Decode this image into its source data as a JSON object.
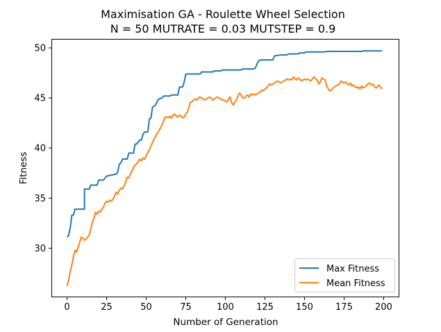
{
  "chart_data": {
    "type": "line",
    "title_line1": "Maximisation GA - Roulette Wheel Selection",
    "title_line2": "N = 50 MUTRATE = 0.03 MUTSTEP = 0.9",
    "xlabel": "Number of Generation",
    "ylabel": "Fitness",
    "xlim": [
      -9.9,
      209.9
    ],
    "ylim": [
      25.1,
      50.9
    ],
    "xticks": [
      0,
      25,
      50,
      75,
      100,
      125,
      150,
      175,
      200
    ],
    "yticks": [
      30,
      35,
      40,
      45,
      50
    ],
    "grid": false,
    "legend_position": "lower right",
    "series": [
      {
        "name": "Max Fitness",
        "color": "#1f77b4",
        "points": [
          [
            0,
            31.1
          ],
          [
            1,
            31.3
          ],
          [
            2,
            32.0
          ],
          [
            3,
            33.3
          ],
          [
            4,
            33.3
          ],
          [
            5,
            33.9
          ],
          [
            6,
            33.9
          ],
          [
            8,
            33.9
          ],
          [
            11,
            33.9
          ],
          [
            11,
            35.9
          ],
          [
            14,
            35.9
          ],
          [
            15,
            36.3
          ],
          [
            19,
            36.3
          ],
          [
            20,
            36.8
          ],
          [
            23,
            36.8
          ],
          [
            24,
            37.0
          ],
          [
            25,
            37.2
          ],
          [
            28,
            37.3
          ],
          [
            31,
            37.4
          ],
          [
            32,
            37.6
          ],
          [
            33,
            38.4
          ],
          [
            34,
            38.5
          ],
          [
            35,
            38.9
          ],
          [
            38,
            38.9
          ],
          [
            39,
            39.5
          ],
          [
            42,
            39.5
          ],
          [
            43,
            40.4
          ],
          [
            44,
            40.4
          ],
          [
            46,
            40.8
          ],
          [
            47,
            40.8
          ],
          [
            48,
            41.4
          ],
          [
            49,
            41.6
          ],
          [
            51,
            41.6
          ],
          [
            52,
            42.9
          ],
          [
            53,
            43.0
          ],
          [
            54,
            44.1
          ],
          [
            56,
            44.3
          ],
          [
            57,
            44.7
          ],
          [
            58,
            44.9
          ],
          [
            60,
            45.0
          ],
          [
            61,
            45.2
          ],
          [
            65,
            45.2
          ],
          [
            66,
            45.3
          ],
          [
            70,
            45.3
          ],
          [
            71,
            46.1
          ],
          [
            73,
            46.1
          ],
          [
            74,
            46.6
          ],
          [
            75,
            47.4
          ],
          [
            84,
            47.4
          ],
          [
            85,
            47.6
          ],
          [
            92,
            47.6
          ],
          [
            93,
            47.7
          ],
          [
            97,
            47.7
          ],
          [
            98,
            47.8
          ],
          [
            110,
            47.8
          ],
          [
            111,
            47.9
          ],
          [
            118,
            47.9
          ],
          [
            119,
            48.0
          ],
          [
            120,
            48.4
          ],
          [
            121,
            48.7
          ],
          [
            122,
            48.8
          ],
          [
            130,
            48.8
          ],
          [
            131,
            49.2
          ],
          [
            135,
            49.3
          ],
          [
            139,
            49.3
          ],
          [
            140,
            49.4
          ],
          [
            146,
            49.4
          ],
          [
            147,
            49.5
          ],
          [
            150,
            49.5
          ],
          [
            151,
            49.6
          ],
          [
            163,
            49.6
          ],
          [
            164,
            49.65
          ],
          [
            186,
            49.65
          ],
          [
            187,
            49.7
          ],
          [
            199,
            49.7
          ]
        ]
      },
      {
        "name": "Mean Fitness",
        "color": "#ff7f0e",
        "points": [
          [
            0,
            26.2
          ],
          [
            1,
            26.8
          ],
          [
            2,
            27.7
          ],
          [
            3,
            28.3
          ],
          [
            4,
            29.1
          ],
          [
            5,
            29.8
          ],
          [
            6,
            29.6
          ],
          [
            7,
            30.1
          ],
          [
            8,
            30.6
          ],
          [
            9,
            31.1
          ],
          [
            10,
            31.0
          ],
          [
            11,
            30.8
          ],
          [
            12,
            30.9
          ],
          [
            13,
            31.1
          ],
          [
            14,
            31.3
          ],
          [
            15,
            31.9
          ],
          [
            16,
            32.6
          ],
          [
            17,
            33.0
          ],
          [
            18,
            33.6
          ],
          [
            19,
            33.4
          ],
          [
            20,
            33.7
          ],
          [
            21,
            33.6
          ],
          [
            22,
            33.9
          ],
          [
            23,
            34.1
          ],
          [
            24,
            34.5
          ],
          [
            25,
            34.7
          ],
          [
            26,
            34.6
          ],
          [
            27,
            34.8
          ],
          [
            28,
            34.7
          ],
          [
            29,
            34.9
          ],
          [
            30,
            35.2
          ],
          [
            31,
            35.6
          ],
          [
            32,
            35.4
          ],
          [
            33,
            35.8
          ],
          [
            34,
            36.0
          ],
          [
            35,
            35.9
          ],
          [
            36,
            36.2
          ],
          [
            37,
            36.6
          ],
          [
            38,
            37.1
          ],
          [
            39,
            37.0
          ],
          [
            40,
            37.4
          ],
          [
            41,
            37.7
          ],
          [
            42,
            38.1
          ],
          [
            43,
            38.3
          ],
          [
            44,
            38.4
          ],
          [
            45,
            38.7
          ],
          [
            46,
            38.9
          ],
          [
            47,
            38.7
          ],
          [
            48,
            39.0
          ],
          [
            49,
            38.9
          ],
          [
            50,
            39.2
          ],
          [
            51,
            39.6
          ],
          [
            52,
            39.8
          ],
          [
            53,
            40.2
          ],
          [
            54,
            40.6
          ],
          [
            55,
            40.9
          ],
          [
            56,
            41.2
          ],
          [
            57,
            41.5
          ],
          [
            58,
            41.7
          ],
          [
            59,
            42.0
          ],
          [
            60,
            42.3
          ],
          [
            61,
            42.7
          ],
          [
            62,
            43.1
          ],
          [
            63,
            43.1
          ],
          [
            64,
            43.0
          ],
          [
            65,
            43.2
          ],
          [
            66,
            43.0
          ],
          [
            67,
            43.3
          ],
          [
            68,
            43.4
          ],
          [
            69,
            43.2
          ],
          [
            70,
            43.1
          ],
          [
            71,
            43.3
          ],
          [
            72,
            43.2
          ],
          [
            73,
            43.0
          ],
          [
            74,
            43.1
          ],
          [
            75,
            43.4
          ],
          [
            76,
            43.6
          ],
          [
            77,
            44.1
          ],
          [
            78,
            44.6
          ],
          [
            79,
            44.6
          ],
          [
            80,
            44.8
          ],
          [
            81,
            44.9
          ],
          [
            82,
            44.8
          ],
          [
            83,
            45.0
          ],
          [
            84,
            45.1
          ],
          [
            85,
            45.0
          ],
          [
            86,
            44.9
          ],
          [
            87,
            44.8
          ],
          [
            88,
            44.9
          ],
          [
            89,
            45.0
          ],
          [
            90,
            45.1
          ],
          [
            91,
            45.0
          ],
          [
            92,
            44.8
          ],
          [
            93,
            44.9
          ],
          [
            94,
            45.0
          ],
          [
            95,
            45.1
          ],
          [
            96,
            45.0
          ],
          [
            97,
            44.9
          ],
          [
            98,
            44.8
          ],
          [
            99,
            44.8
          ],
          [
            100,
            44.7
          ],
          [
            101,
            44.6
          ],
          [
            102,
            44.9
          ],
          [
            103,
            45.1
          ],
          [
            104,
            44.5
          ],
          [
            105,
            44.3
          ],
          [
            106,
            44.6
          ],
          [
            107,
            44.8
          ],
          [
            108,
            45.2
          ],
          [
            109,
            45.5
          ],
          [
            110,
            45.3
          ],
          [
            111,
            45.0
          ],
          [
            112,
            45.0
          ],
          [
            113,
            45.2
          ],
          [
            114,
            45.3
          ],
          [
            115,
            45.1
          ],
          [
            116,
            45.4
          ],
          [
            117,
            45.3
          ],
          [
            118,
            45.4
          ],
          [
            119,
            45.3
          ],
          [
            120,
            45.4
          ],
          [
            121,
            45.5
          ],
          [
            122,
            45.6
          ],
          [
            123,
            45.8
          ],
          [
            124,
            45.7
          ],
          [
            125,
            45.9
          ],
          [
            126,
            46.0
          ],
          [
            127,
            46.2
          ],
          [
            128,
            46.4
          ],
          [
            129,
            46.3
          ],
          [
            130,
            46.4
          ],
          [
            131,
            46.5
          ],
          [
            132,
            46.6
          ],
          [
            133,
            46.7
          ],
          [
            134,
            46.6
          ],
          [
            135,
            46.5
          ],
          [
            136,
            46.6
          ],
          [
            137,
            46.7
          ],
          [
            138,
            46.8
          ],
          [
            139,
            46.9
          ],
          [
            140,
            46.8
          ],
          [
            141,
            46.9
          ],
          [
            142,
            46.8
          ],
          [
            143,
            47.1
          ],
          [
            144,
            46.9
          ],
          [
            145,
            46.8
          ],
          [
            146,
            47.0
          ],
          [
            147,
            46.9
          ],
          [
            148,
            46.7
          ],
          [
            149,
            46.8
          ],
          [
            150,
            46.9
          ],
          [
            151,
            46.8
          ],
          [
            152,
            46.9
          ],
          [
            153,
            46.8
          ],
          [
            154,
            46.7
          ],
          [
            155,
            46.9
          ],
          [
            156,
            47.1
          ],
          [
            157,
            46.9
          ],
          [
            158,
            46.8
          ],
          [
            159,
            46.4
          ],
          [
            160,
            46.6
          ],
          [
            161,
            47.0
          ],
          [
            162,
            46.9
          ],
          [
            163,
            46.8
          ],
          [
            164,
            46.2
          ],
          [
            165,
            45.9
          ],
          [
            166,
            45.7
          ],
          [
            167,
            45.8
          ],
          [
            168,
            46.0
          ],
          [
            169,
            46.1
          ],
          [
            170,
            46.2
          ],
          [
            171,
            46.3
          ],
          [
            172,
            46.4
          ],
          [
            173,
            46.7
          ],
          [
            174,
            46.6
          ],
          [
            175,
            46.5
          ],
          [
            176,
            46.6
          ],
          [
            177,
            46.4
          ],
          [
            178,
            46.3
          ],
          [
            179,
            46.5
          ],
          [
            180,
            46.2
          ],
          [
            181,
            46.3
          ],
          [
            182,
            46.1
          ],
          [
            183,
            46.0
          ],
          [
            184,
            46.1
          ],
          [
            185,
            45.9
          ],
          [
            186,
            46.2
          ],
          [
            187,
            46.0
          ],
          [
            188,
            46.1
          ],
          [
            189,
            46.2
          ],
          [
            190,
            46.4
          ],
          [
            191,
            46.5
          ],
          [
            192,
            46.3
          ],
          [
            193,
            46.4
          ],
          [
            194,
            46.2
          ],
          [
            195,
            46.0
          ],
          [
            196,
            46.1
          ],
          [
            197,
            46.3
          ],
          [
            198,
            46.1
          ],
          [
            199,
            45.9
          ]
        ]
      }
    ]
  }
}
